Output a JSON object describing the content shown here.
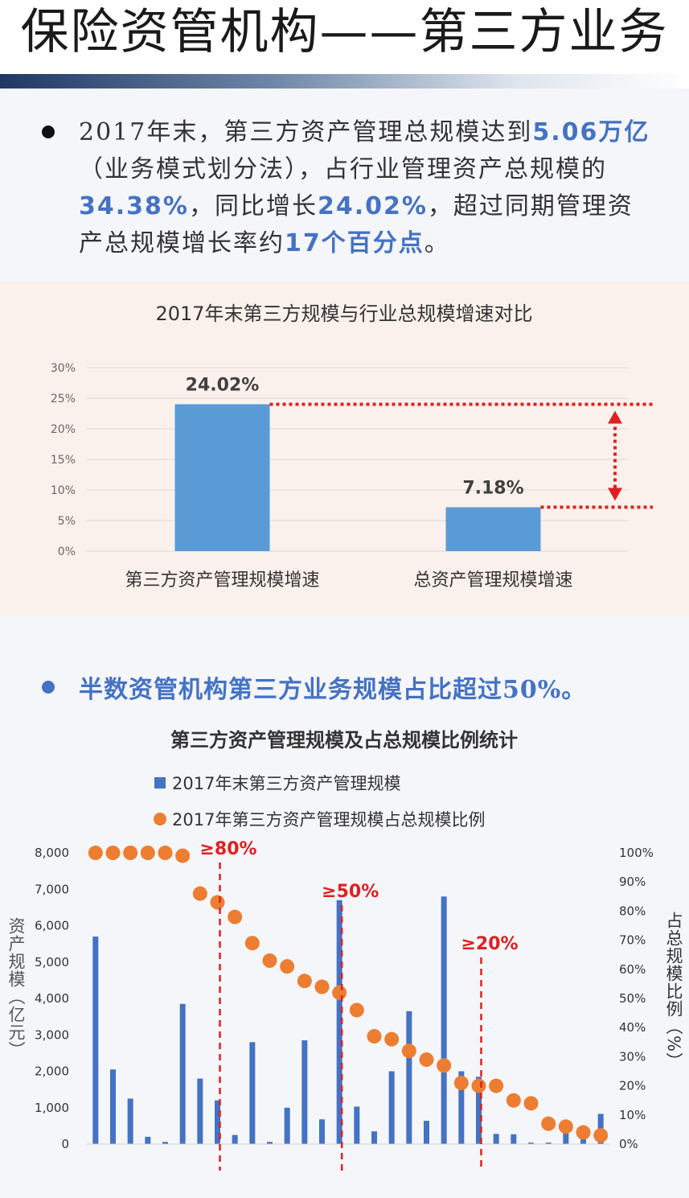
{
  "header": {
    "title": "保险资管机构——第三方业务"
  },
  "paragraph1": {
    "t1": "2017年末，第三方资产管理总规模达到",
    "h1": "5.06万亿",
    "t2": "（业务模式划分法），占行业管理资产总规模的",
    "h2": "34.38%",
    "t3": "，同比增长",
    "h3": "24.02%",
    "t4": "，超过同期管理资产总规模增长率约",
    "h4": "17个百分点",
    "t5": "。"
  },
  "bullet2": {
    "text": "半数资管机构第三方业务规模占比超过50%。"
  },
  "colors": {
    "bar": "#5b9bd5",
    "dark_bar": "#4472c4",
    "dot": "#ed7d31",
    "annotation": "#e02020",
    "highlight": "#4472c4"
  },
  "chart_data": [
    {
      "type": "bar",
      "title": "2017年末第三方规模与行业总规模增速对比",
      "categories": [
        "第三方资产管理规模增速",
        "总资产管理规模增速"
      ],
      "values": [
        24.02,
        7.18
      ],
      "data_labels": [
        "24.02%",
        "7.18%"
      ],
      "ylim": [
        0,
        30
      ],
      "yticks": [
        "0%",
        "5%",
        "10%",
        "15%",
        "20%",
        "25%",
        "30%"
      ],
      "grid": true
    },
    {
      "type": "bar",
      "title": "第三方资产管理规模及占总规模比例统计",
      "series": [
        {
          "name": "2017年末第三方资产管理规模",
          "kind": "bar",
          "axis": "left",
          "values": [
            5700,
            2050,
            1250,
            200,
            60,
            3850,
            1800,
            1200,
            250,
            2800,
            60,
            1000,
            2850,
            680,
            6700,
            1030,
            350,
            2000,
            3650,
            640,
            6800,
            2000,
            1850,
            280,
            270,
            40,
            40,
            300,
            260,
            830
          ]
        },
        {
          "name": "2017年第三方资产管理规模占总规模比例",
          "kind": "scatter",
          "axis": "right",
          "values": [
            100,
            100,
            100,
            100,
            100,
            99,
            86,
            83,
            78,
            69,
            63,
            61,
            56,
            54,
            52,
            46,
            37,
            36,
            32,
            29,
            27,
            21,
            20,
            20,
            15,
            14,
            7,
            6,
            4,
            3
          ]
        }
      ],
      "left_axis": {
        "label": "资产规模（亿元）",
        "ylim": [
          0,
          8000
        ],
        "ticks": [
          "0",
          "1,000",
          "2,000",
          "3,000",
          "4,000",
          "5,000",
          "6,000",
          "7,000",
          "8,000"
        ]
      },
      "right_axis": {
        "label": "占总规模比例（%）",
        "ylim": [
          0,
          100
        ],
        "ticks": [
          "0%",
          "10%",
          "20%",
          "30%",
          "40%",
          "50%",
          "60%",
          "70%",
          "80%",
          "90%",
          "100%"
        ]
      },
      "annotations": [
        "≥80%",
        "≥50%",
        "≥20%"
      ],
      "legend_position": "top"
    }
  ]
}
